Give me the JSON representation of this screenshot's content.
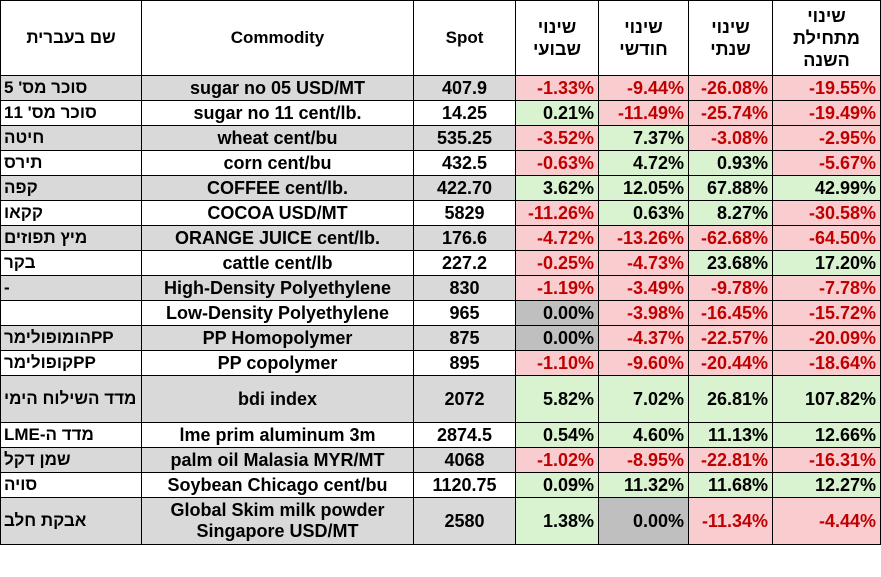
{
  "headers": {
    "hebrew_name": "שם בעברית",
    "commodity": "Commodity",
    "spot": "Spot",
    "weekly": "שינוי שבועי",
    "monthly": "שינוי חודשי",
    "yearly": "שינוי שנתי",
    "ytd": "שינוי מתחילת השנה"
  },
  "rows": [
    {
      "heb": "סוכר מס' 5",
      "name": "sugar no 05 USD/MT",
      "spot": "407.9",
      "w": "-1.33%",
      "m": "-9.44%",
      "y": "-26.08%",
      "ytd": "-19.55%"
    },
    {
      "heb": "סוכר מס' 11",
      "name": "sugar no 11 cent/lb.",
      "spot": "14.25",
      "w": "0.21%",
      "m": "-11.49%",
      "y": "-25.74%",
      "ytd": "-19.49%"
    },
    {
      "heb": "חיטה",
      "name": "wheat cent/bu",
      "spot": "535.25",
      "w": "-3.52%",
      "m": "7.37%",
      "y": "-3.08%",
      "ytd": "-2.95%"
    },
    {
      "heb": "תירס",
      "name": "corn cent/bu",
      "spot": "432.5",
      "w": "-0.63%",
      "m": "4.72%",
      "y": "0.93%",
      "ytd": "-5.67%"
    },
    {
      "heb": "קפה",
      "name": "COFFEE cent/lb.",
      "spot": "422.70",
      "w": "3.62%",
      "m": "12.05%",
      "y": "67.88%",
      "ytd": "42.99%"
    },
    {
      "heb": "קקאו",
      "name": "COCOA USD/MT",
      "spot": "5829",
      "w": "-11.26%",
      "m": "0.63%",
      "y": "8.27%",
      "ytd": "-30.58%"
    },
    {
      "heb": "מיץ תפוזים",
      "name": "ORANGE JUICE cent/lb.",
      "spot": "176.6",
      "w": "-4.72%",
      "m": "-13.26%",
      "y": "-62.68%",
      "ytd": "-64.50%"
    },
    {
      "heb": "בקר",
      "name": "cattle cent/lb",
      "spot": "227.2",
      "w": "-0.25%",
      "m": "-4.73%",
      "y": "23.68%",
      "ytd": "17.20%"
    },
    {
      "heb": "-",
      "name": "High-Density Polyethylene",
      "spot": "830",
      "w": "-1.19%",
      "m": "-3.49%",
      "y": "-9.78%",
      "ytd": "-7.78%"
    },
    {
      "heb": "",
      "name": "Low-Density Polyethylene",
      "spot": "965",
      "w": "0.00%",
      "m": "-3.98%",
      "y": "-16.45%",
      "ytd": "-15.72%"
    },
    {
      "heb": "PPהומופולימר",
      "name": "PP Homopolymer",
      "spot": "875",
      "w": "0.00%",
      "m": "-4.37%",
      "y": "-22.57%",
      "ytd": "-20.09%"
    },
    {
      "heb": "PPקופולימר",
      "name": "PP copolymer",
      "spot": "895",
      "w": "-1.10%",
      "m": "-9.60%",
      "y": "-20.44%",
      "ytd": "-18.64%"
    },
    {
      "heb": "מדד השילוח הימי",
      "name": "bdi index",
      "spot": "2072",
      "w": "5.82%",
      "m": "7.02%",
      "y": "26.81%",
      "ytd": "107.82%"
    },
    {
      "heb": "מדד ה-LME",
      "name": "lme prim aluminum 3m",
      "spot": "2874.5",
      "w": "0.54%",
      "m": "4.60%",
      "y": "11.13%",
      "ytd": "12.66%"
    },
    {
      "heb": "שמן דקל",
      "name": "palm oil Malasia MYR/MT",
      "spot": "4068",
      "w": "-1.02%",
      "m": "-8.95%",
      "y": "-22.81%",
      "ytd": "-16.31%"
    },
    {
      "heb": "סויה",
      "name": "Soybean Chicago cent/bu",
      "spot": "1120.75",
      "w": "0.09%",
      "m": "11.32%",
      "y": "11.68%",
      "ytd": "12.27%"
    },
    {
      "heb": "אבקת חלב",
      "name": "Global Skim milk powder Singapore USD/MT",
      "spot": "2580",
      "w": "1.38%",
      "m": "0.00%",
      "y": "-11.34%",
      "ytd": "-4.44%"
    }
  ],
  "colors": {
    "positive_bg": "#d9f2d0",
    "negative_bg": "#f9cdd0",
    "zero_bg": "#bfbfbf",
    "negative_text": "#c00000",
    "shaded_row_bg": "#d9d9d9"
  }
}
